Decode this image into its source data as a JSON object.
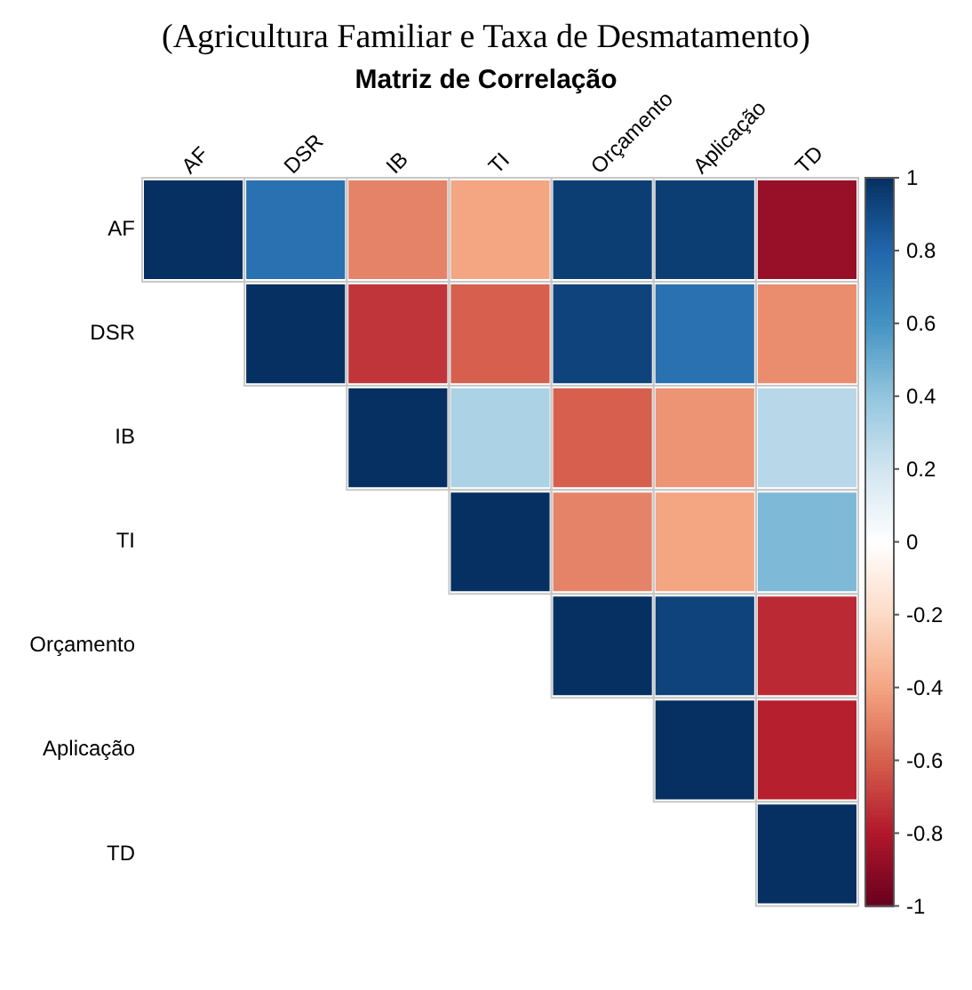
{
  "chart_data": {
    "type": "heatmap",
    "title": "Matriz de Correlação",
    "annotations": [
      "(Agricultura Familiar e Taxa de Desmatamento)"
    ],
    "categories": [
      "AF",
      "DSR",
      "IB",
      "TI",
      "Orçamento",
      "Aplicação",
      "TD"
    ],
    "y_categories": [
      "AF",
      "DSR",
      "IB",
      "TI",
      "Orçamento",
      "Aplicação",
      "TD"
    ],
    "cells": [
      [
        1,
        0.75,
        -0.5,
        -0.4,
        0.95,
        0.95,
        -0.87
      ],
      [
        null,
        1,
        -0.72,
        -0.6,
        0.93,
        0.75,
        -0.47
      ],
      [
        null,
        null,
        1,
        0.32,
        -0.6,
        -0.45,
        0.28
      ],
      [
        null,
        null,
        null,
        1,
        -0.5,
        -0.4,
        0.45
      ],
      [
        null,
        null,
        null,
        null,
        1,
        0.93,
        -0.75
      ],
      [
        null,
        null,
        null,
        null,
        null,
        1,
        -0.78
      ],
      [
        null,
        null,
        null,
        null,
        null,
        null,
        1
      ]
    ],
    "clim": [
      -1,
      1
    ],
    "cticks": [
      1,
      0.8,
      0.6,
      0.4,
      0.2,
      0,
      -0.2,
      -0.4,
      -0.6,
      -0.8,
      -1
    ]
  }
}
